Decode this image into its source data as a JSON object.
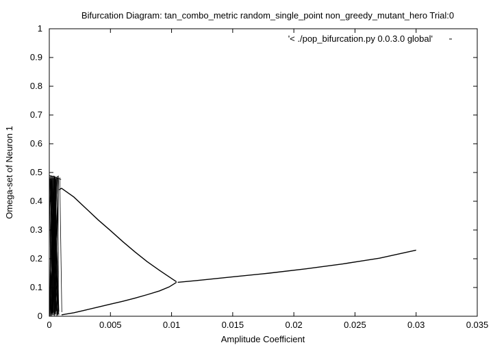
{
  "chart_data": {
    "type": "scatter",
    "title": "Bifurcation Diagram: tan_combo_metric random_single_point non_greedy_mutant_hero Trial:0",
    "xlabel": "Amplitude Coefficient",
    "ylabel": "Omega-set of Neuron 1",
    "xlim": [
      0,
      0.035
    ],
    "ylim": [
      0,
      1
    ],
    "xticks": [
      "0",
      "0.005",
      "0.01",
      "0.015",
      "0.02",
      "0.025",
      "0.03",
      "0.035"
    ],
    "yticks": [
      "0",
      "0.1",
      "0.2",
      "0.3",
      "0.4",
      "0.5",
      "0.6",
      "0.7",
      "0.8",
      "0.9",
      "1"
    ],
    "grid": false,
    "legend_position": "top-right",
    "series": [
      {
        "name": "'< ./pop_bifurcation.py 0.0.3.0 global'",
        "color": "#000000",
        "branches": {
          "upper": [
            [
              0.0008,
              0.44
            ],
            [
              0.001,
              0.445
            ],
            [
              0.002,
              0.415
            ],
            [
              0.003,
              0.375
            ],
            [
              0.004,
              0.335
            ],
            [
              0.005,
              0.298
            ],
            [
              0.006,
              0.26
            ],
            [
              0.007,
              0.224
            ],
            [
              0.008,
              0.19
            ],
            [
              0.009,
              0.16
            ],
            [
              0.0098,
              0.137
            ],
            [
              0.0104,
              0.12
            ]
          ],
          "lower": [
            [
              0.001,
              0.005
            ],
            [
              0.002,
              0.012
            ],
            [
              0.003,
              0.022
            ],
            [
              0.004,
              0.032
            ],
            [
              0.005,
              0.042
            ],
            [
              0.006,
              0.052
            ],
            [
              0.007,
              0.063
            ],
            [
              0.008,
              0.075
            ],
            [
              0.009,
              0.088
            ],
            [
              0.0098,
              0.102
            ],
            [
              0.0104,
              0.118
            ]
          ],
          "single": [
            [
              0.0105,
              0.118
            ],
            [
              0.012,
              0.124
            ],
            [
              0.015,
              0.137
            ],
            [
              0.018,
              0.15
            ],
            [
              0.021,
              0.165
            ],
            [
              0.024,
              0.182
            ],
            [
              0.027,
              0.202
            ],
            [
              0.03,
              0.23
            ]
          ]
        },
        "chaotic_region": {
          "x_range": [
            0,
            0.0008
          ],
          "y_range": [
            0,
            0.49
          ]
        }
      }
    ]
  }
}
